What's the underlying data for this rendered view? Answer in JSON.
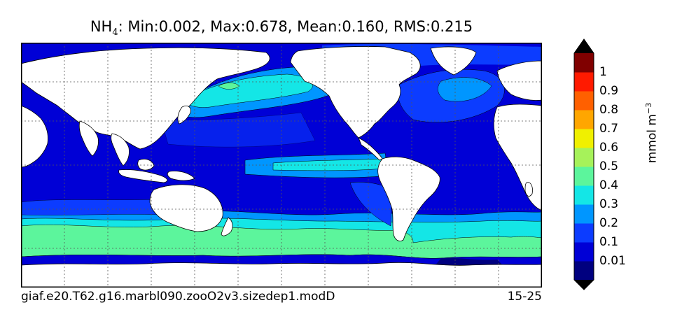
{
  "title": {
    "variable": "NH",
    "subscript": "4",
    "stats": ": Min:0.002, Max:0.678, Mean:0.160, RMS:0.215"
  },
  "footer": {
    "case_name": "giaf.e20.T62.g16.marbl090.zooO2v3.sizedep1.modD",
    "years": "15-25"
  },
  "colorbar": {
    "units_label": "mmol m",
    "units_exponent": "−3",
    "ticks": [
      "0.01",
      "0.1",
      "0.2",
      "0.3",
      "0.4",
      "0.5",
      "0.6",
      "0.7",
      "0.8",
      "0.9",
      "1"
    ],
    "colors": [
      "#00007f",
      "#0000d6",
      "#0c3cff",
      "#0096ff",
      "#14e6e6",
      "#5cf59c",
      "#a6f25a",
      "#f0f000",
      "#ffa600",
      "#ff6000",
      "#ff1a00",
      "#800000"
    ],
    "under_color": "#000000",
    "over_color": "#000000"
  },
  "map_colors": {
    "land": "#ffffff",
    "very_low": "#0000d6",
    "low": "#0c3cff",
    "mid": "#0096ff",
    "upper": "#14e6e6",
    "high": "#5cf59c",
    "peak": "#a6f25a",
    "ice": "#00007f"
  }
}
